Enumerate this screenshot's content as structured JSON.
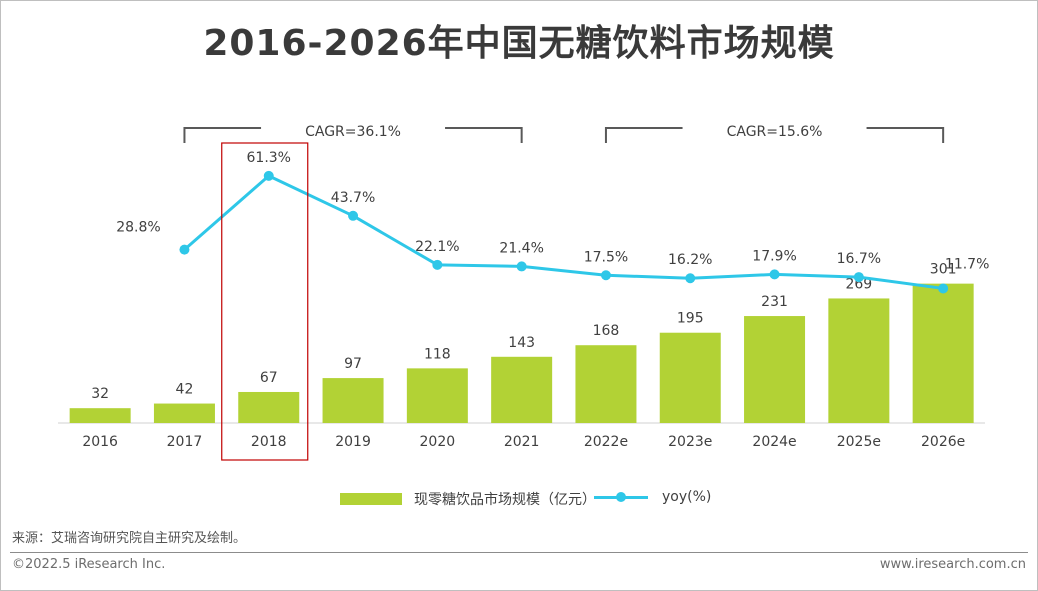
{
  "title": "2016-2026年中国无糖饮料市场规模",
  "colors": {
    "bar": "#b2d235",
    "line": "#2ec7e8",
    "highlight": "#c00000",
    "bracket": "#595959"
  },
  "chart_data": {
    "type": "bar+line",
    "categories": [
      "2016",
      "2017",
      "2018",
      "2019",
      "2020",
      "2021",
      "2022e",
      "2023e",
      "2024e",
      "2025e",
      "2026e"
    ],
    "series": [
      {
        "name": "现零糖饮品市场规模（亿元）",
        "type": "bar",
        "values": [
          32,
          42,
          67,
          97,
          118,
          143,
          168,
          195,
          231,
          269,
          301
        ],
        "labels": [
          "32",
          "42",
          "67",
          "97",
          "118",
          "143",
          "168",
          "195",
          "231",
          "269",
          "301"
        ]
      },
      {
        "name": "yoy(%)",
        "type": "line",
        "values": [
          null,
          28.8,
          61.3,
          43.7,
          22.1,
          21.4,
          17.5,
          16.2,
          17.9,
          16.7,
          11.7
        ],
        "labels": [
          "",
          "28.8%",
          "61.3%",
          "43.7%",
          "22.1%",
          "21.4%",
          "17.5%",
          "16.2%",
          "17.9%",
          "16.7%",
          "11.7%"
        ]
      }
    ],
    "annotations": [
      {
        "text": "CAGR=36.1%",
        "from": "2017",
        "to": "2021"
      },
      {
        "text": "CAGR=15.6%",
        "from": "2022e",
        "to": "2026e"
      }
    ],
    "highlight_category": "2018"
  },
  "legend": {
    "bar_label": "现零糖饮品市场规模（亿元）",
    "line_label": "yoy(%)"
  },
  "source": "来源：艾瑞咨询研究院自主研究及绘制。",
  "copyright": "©2022.5 iResearch Inc.",
  "site": "www.iresearch.com.cn"
}
